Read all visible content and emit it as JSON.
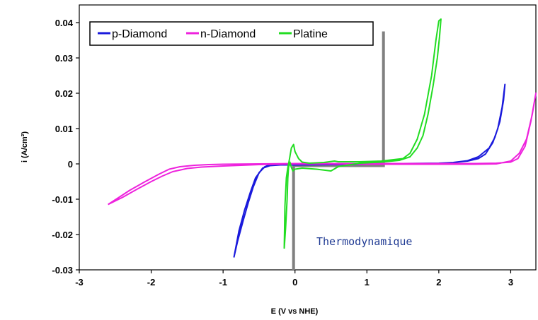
{
  "chart_data": {
    "type": "line",
    "title": "",
    "xlabel": "E (V vs NHE)",
    "ylabel": "i (A/cm²)",
    "xlim": [
      -3,
      3.35
    ],
    "ylim": [
      -0.03,
      0.045
    ],
    "x_ticks": [
      -3,
      -2,
      -1,
      0,
      1,
      2,
      3
    ],
    "x_tick_labels": [
      "-3",
      "-2",
      "-1",
      "0",
      "1",
      "2",
      "3"
    ],
    "y_ticks": [
      -0.03,
      -0.02,
      -0.01,
      0,
      0.01,
      0.02,
      0.03,
      0.04
    ],
    "y_tick_labels": [
      "-0.03",
      "-0.02",
      "-0.01",
      "0",
      "0.01",
      "0.02",
      "0.03",
      "0.04"
    ],
    "grid": false,
    "legend_position": "top-left",
    "legend": [
      "p-Diamond",
      "n-Diamond",
      "Platine"
    ],
    "annotation": "Thermodynamique",
    "window_line": {
      "color": "#808080",
      "points": [
        [
          -0.02,
          -0.03
        ],
        [
          -0.02,
          -0.0005
        ],
        [
          1.23,
          -0.0005
        ],
        [
          1.23,
          0.0375
        ]
      ]
    },
    "series": [
      {
        "name": "p-Diamond",
        "color": "#1a1adc",
        "x": [
          -0.85,
          -0.8,
          -0.72,
          -0.65,
          -0.58,
          -0.5,
          -0.42,
          -0.35,
          -0.2,
          0.0,
          0.5,
          1.0,
          1.5,
          2.0,
          2.2,
          2.4,
          2.55,
          2.65,
          2.75,
          2.82,
          2.88,
          2.92,
          2.9,
          2.85,
          2.78,
          2.7,
          2.55,
          2.4,
          2.2,
          2.0,
          1.5,
          1.0,
          0.5,
          0.0,
          -0.2,
          -0.35,
          -0.45,
          -0.55,
          -0.62,
          -0.7,
          -0.78,
          -0.85
        ],
        "y": [
          -0.0265,
          -0.022,
          -0.016,
          -0.011,
          -0.0065,
          -0.0025,
          -0.0008,
          -0.0002,
          -0.0001,
          0.0,
          0.0,
          0.0,
          0.0001,
          0.0002,
          0.0004,
          0.0008,
          0.0015,
          0.0028,
          0.006,
          0.01,
          0.016,
          0.0225,
          0.018,
          0.012,
          0.0075,
          0.0045,
          0.002,
          0.0009,
          0.0004,
          0.0001,
          0.0,
          -0.0001,
          -0.0002,
          -0.0003,
          -0.0003,
          -0.0005,
          -0.0012,
          -0.004,
          -0.008,
          -0.013,
          -0.019,
          -0.0265
        ]
      },
      {
        "name": "n-Diamond",
        "color": "#ee22dd",
        "x": [
          -2.6,
          -2.45,
          -2.3,
          -2.1,
          -1.9,
          -1.75,
          -1.6,
          -1.4,
          -1.2,
          -1.0,
          -0.5,
          0.0,
          0.5,
          1.0,
          1.5,
          2.0,
          2.5,
          2.8,
          3.0,
          3.1,
          3.2,
          3.28,
          3.35,
          3.3,
          3.22,
          3.12,
          3.0,
          2.8,
          2.5,
          2.0,
          1.5,
          1.0,
          0.5,
          0.0,
          -0.5,
          -1.0,
          -1.3,
          -1.5,
          -1.7,
          -1.85,
          -2.0,
          -2.2,
          -2.4,
          -2.6
        ],
        "y": [
          -0.0115,
          -0.0095,
          -0.0075,
          -0.0052,
          -0.003,
          -0.0015,
          -0.0008,
          -0.0004,
          -0.0002,
          -0.0001,
          0.0,
          0.0001,
          0.0001,
          0.0001,
          0.0001,
          0.0001,
          0.0001,
          0.0002,
          0.0005,
          0.0015,
          0.005,
          0.012,
          0.02,
          0.014,
          0.007,
          0.003,
          0.0008,
          0.0,
          -0.0001,
          -0.0001,
          -0.0001,
          -0.0001,
          0.0,
          0.0,
          -0.0002,
          -0.0006,
          -0.0009,
          -0.0013,
          -0.0022,
          -0.0035,
          -0.005,
          -0.0072,
          -0.0095,
          -0.0115
        ]
      },
      {
        "name": "Platine",
        "color": "#22dd22",
        "x": [
          -0.15,
          -0.14,
          -0.12,
          -0.1,
          -0.08,
          -0.05,
          -0.02,
          0.0,
          0.05,
          0.1,
          0.2,
          0.4,
          0.55,
          0.6,
          0.62,
          0.7,
          0.9,
          1.2,
          1.5,
          1.6,
          1.7,
          1.8,
          1.9,
          1.96,
          2.0,
          2.03,
          2.01,
          1.98,
          1.92,
          1.85,
          1.78,
          1.7,
          1.6,
          1.45,
          1.2,
          0.9,
          0.6,
          0.5,
          0.3,
          0.1,
          0.0,
          -0.03,
          -0.05,
          -0.07,
          -0.09,
          -0.1,
          -0.11,
          -0.13,
          -0.15
        ],
        "y": [
          -0.024,
          -0.012,
          -0.004,
          -0.001,
          0.001,
          0.0045,
          0.0055,
          0.0035,
          0.0015,
          0.0005,
          0.0002,
          0.0004,
          0.0008,
          0.0006,
          0.0006,
          0.0006,
          0.0006,
          0.0008,
          0.0015,
          0.003,
          0.007,
          0.014,
          0.025,
          0.035,
          0.0405,
          0.041,
          0.036,
          0.03,
          0.022,
          0.014,
          0.008,
          0.0045,
          0.002,
          0.001,
          0.0005,
          0.0002,
          -0.0008,
          -0.002,
          -0.0015,
          -0.0012,
          -0.0015,
          -0.002,
          -0.001,
          0.0005,
          -0.001,
          -0.004,
          -0.01,
          -0.018,
          -0.024
        ]
      }
    ]
  }
}
